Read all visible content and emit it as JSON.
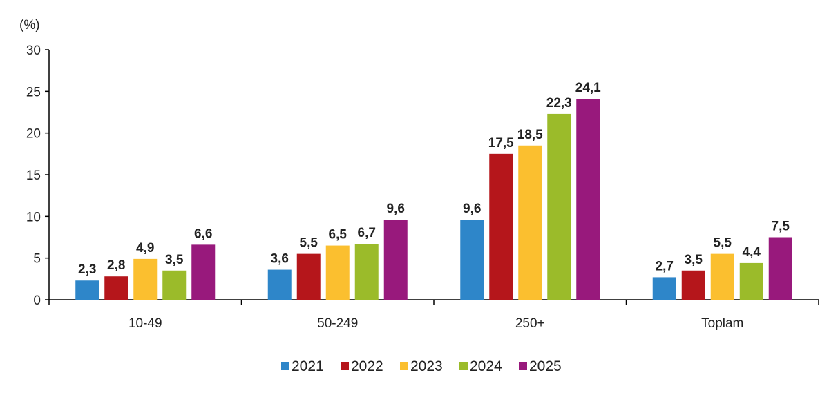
{
  "chart_data": {
    "type": "bar",
    "title": "",
    "ylabel": "(%)",
    "xlabel": "",
    "ylim": [
      0,
      30
    ],
    "yticks": [
      0,
      5,
      10,
      15,
      20,
      25,
      30
    ],
    "grid": false,
    "legend_placement": "bottom",
    "categories": [
      "10-49",
      "50-249",
      "250+",
      "Toplam"
    ],
    "series": [
      {
        "name": "2021",
        "color": "#2e86c9",
        "values": [
          2.3,
          3.6,
          9.6,
          2.7
        ],
        "labels": [
          "2,3",
          "3,6",
          "9,6",
          "2,7"
        ]
      },
      {
        "name": "2022",
        "color": "#b5161b",
        "values": [
          2.8,
          5.5,
          17.5,
          3.5
        ],
        "labels": [
          "2,8",
          "5,5",
          "17,5",
          "3,5"
        ]
      },
      {
        "name": "2023",
        "color": "#fbbf2f",
        "values": [
          4.9,
          6.5,
          18.5,
          5.5
        ],
        "labels": [
          "4,9",
          "6,5",
          "18,5",
          "5,5"
        ]
      },
      {
        "name": "2024",
        "color": "#9bbb2a",
        "values": [
          3.5,
          6.7,
          22.3,
          4.4
        ],
        "labels": [
          "3,5",
          "6,7",
          "22,3",
          "4,4"
        ]
      },
      {
        "name": "2025",
        "color": "#98197c",
        "values": [
          6.6,
          9.6,
          24.1,
          7.5
        ],
        "labels": [
          "6,6",
          "9,6",
          "24,1",
          "7,5"
        ]
      }
    ]
  }
}
